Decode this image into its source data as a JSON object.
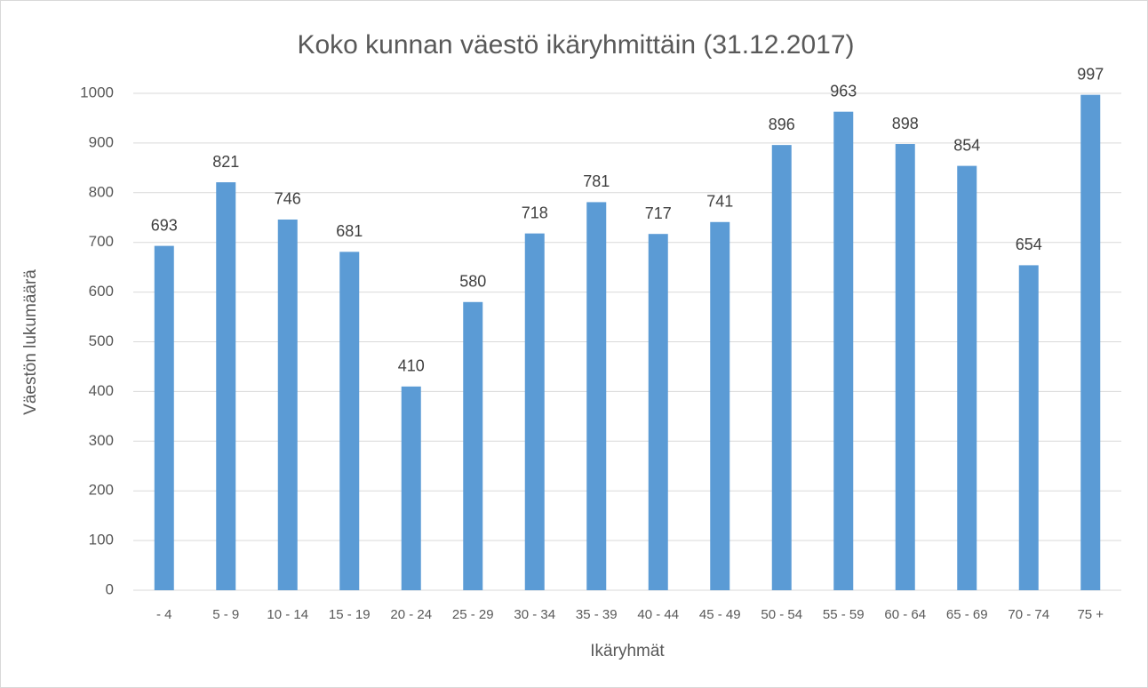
{
  "chart_data": {
    "type": "bar",
    "title": "Koko kunnan väestö ikäryhmittäin (31.12.2017)",
    "x_label": "Ikäryhmät",
    "y_label": "Väestön lukumäärä",
    "categories": [
      "- 4",
      "5 - 9",
      "10 - 14",
      "15 - 19",
      "20 - 24",
      "25 - 29",
      "30 - 34",
      "35 - 39",
      "40 - 44",
      "45 - 49",
      "50 - 54",
      "55 - 59",
      "60 - 64",
      "65 - 69",
      "70 - 74",
      "75 +"
    ],
    "values": [
      693,
      821,
      746,
      681,
      410,
      580,
      718,
      781,
      717,
      741,
      896,
      963,
      898,
      854,
      654,
      997
    ],
    "color": "#5b9bd5",
    "ylim": [
      0,
      1000
    ],
    "yticks": [
      0,
      100,
      200,
      300,
      400,
      500,
      600,
      700,
      800,
      900,
      1000
    ],
    "grid": true
  }
}
